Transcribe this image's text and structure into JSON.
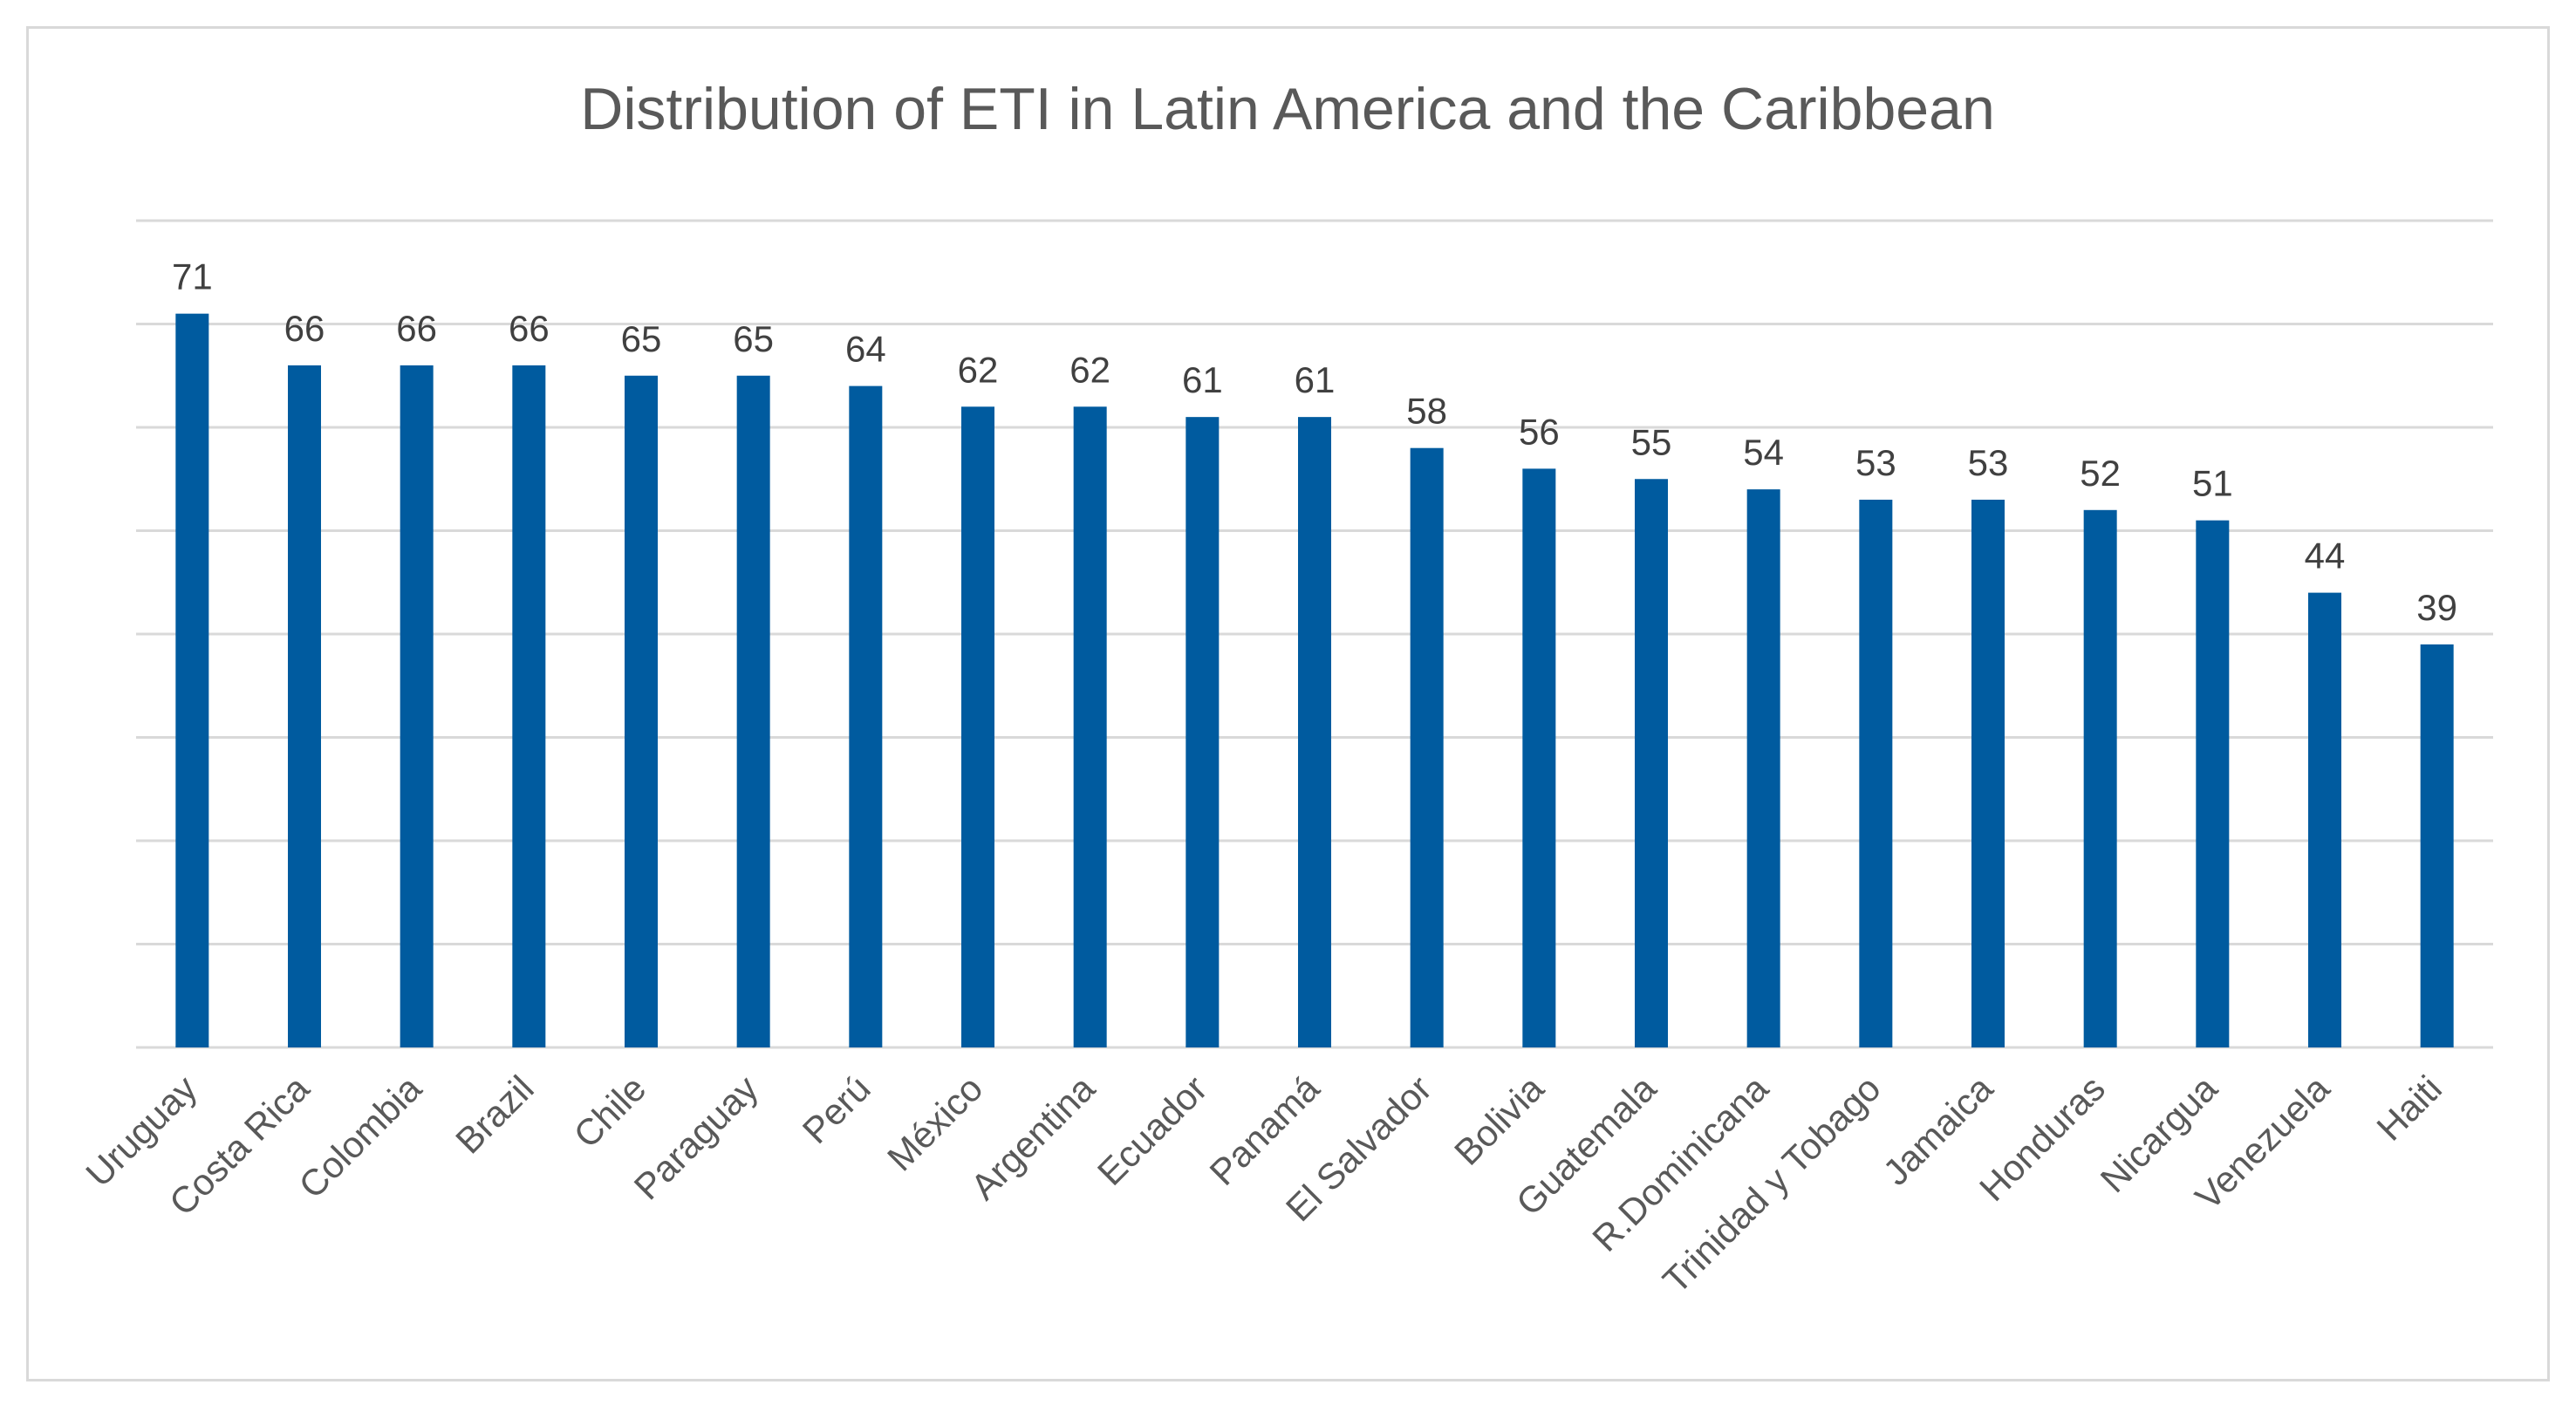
{
  "chart_data": {
    "type": "bar",
    "title": "Distribution of ETI in Latin America and the Caribbean",
    "xlabel": "",
    "ylabel": "",
    "categories": [
      "Uruguay",
      "Costa Rica",
      "Colombia",
      "Brazil",
      "Chile",
      "Paraguay",
      "Perú",
      "México",
      "Argentina",
      "Ecuador",
      "Panamá",
      "El Salvador",
      "Bolivia",
      "Guatemala",
      "R.Dominicana",
      "Trinidad y Tobago",
      "Jamaica",
      "Honduras",
      "Nicargua",
      "Venezuela",
      "Haiti"
    ],
    "values": [
      71,
      66,
      66,
      66,
      65,
      65,
      64,
      62,
      62,
      61,
      61,
      58,
      56,
      55,
      54,
      53,
      53,
      52,
      51,
      44,
      39
    ],
    "ylim": [
      0,
      80
    ],
    "gridlines": true,
    "data_labels": true,
    "legend": "none",
    "colors": {
      "bar": "#005b9f",
      "grid": "#d9d9d9",
      "frame": "#d9d9d9"
    }
  }
}
